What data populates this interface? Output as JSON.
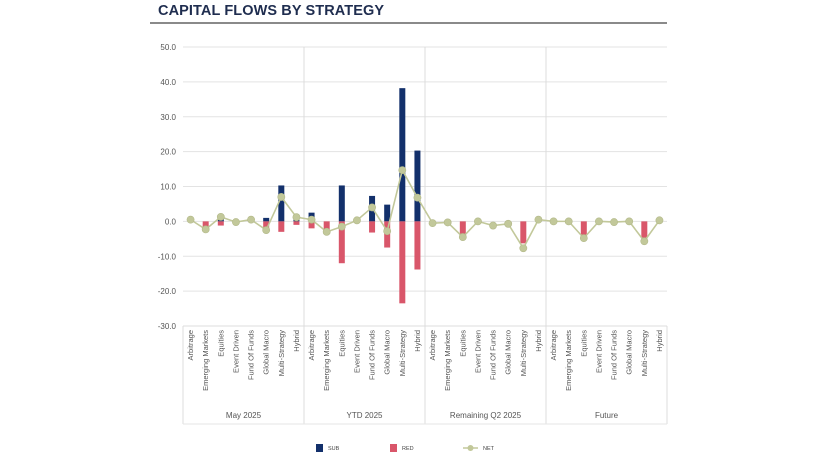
{
  "chart_data": {
    "type": "bar",
    "title": "CAPITAL FLOWS BY STRATEGY",
    "xlabel": "",
    "ylabel": "",
    "ylim": [
      -30,
      50
    ],
    "yticks": [
      50,
      40,
      30,
      20,
      10,
      0,
      -10,
      -20,
      -30
    ],
    "ytick_labels": [
      "50.0",
      "40.0",
      "30.0",
      "20.0",
      "10.0",
      "0.0",
      "-10.0",
      "-20.0",
      "-30.0"
    ],
    "grid": true,
    "legend_position": "bottom",
    "groups": [
      "May 2025",
      "YTD 2025",
      "Remaining Q2 2025",
      "Future"
    ],
    "categories": [
      "Arbitrage",
      "Emerging Markets",
      "Equities",
      "Event Driven",
      "Fund Of Funds",
      "Global Macro",
      "Multi-Strategy",
      "Hybrid"
    ],
    "series": [
      {
        "name": "SUB",
        "kind": "stacked-bar",
        "color": "#13306b",
        "values": [
          [
            0.3,
            0,
            1.8,
            0,
            0.5,
            1.0,
            10.3,
            1.0
          ],
          [
            2.5,
            0,
            10.3,
            0.3,
            7.3,
            4.8,
            38.2,
            20.3
          ],
          [
            0,
            0,
            0,
            0,
            0,
            0,
            0,
            0
          ],
          [
            0,
            0,
            0,
            0,
            0,
            0,
            0,
            0
          ]
        ]
      },
      {
        "name": "RED",
        "kind": "stacked-bar",
        "color": "#d9566a",
        "values": [
          [
            0,
            -1.5,
            -1.2,
            0,
            0,
            -2.0,
            -3.0,
            -1.0
          ],
          [
            -2.0,
            -2.5,
            -12.0,
            0,
            -3.2,
            -7.5,
            -23.5,
            -13.8
          ],
          [
            0,
            0,
            -4.7,
            0,
            0,
            0,
            -6.3,
            0
          ],
          [
            0,
            0,
            -4.5,
            0,
            0,
            0,
            -5.0,
            0
          ]
        ]
      },
      {
        "name": "NET",
        "kind": "line",
        "color": "#c2c89a",
        "values": [
          [
            0.5,
            -2.3,
            1.3,
            -0.2,
            0.5,
            -2.5,
            7.0,
            1.2
          ],
          [
            0.5,
            -3.0,
            -1.5,
            0.3,
            4.0,
            -2.8,
            14.7,
            6.8
          ],
          [
            -0.5,
            -0.3,
            -4.5,
            0,
            -1.2,
            -0.7,
            -7.7,
            0.5
          ],
          [
            0,
            0,
            -4.8,
            0,
            -0.2,
            0,
            -5.7,
            0.3
          ]
        ]
      }
    ]
  },
  "legend": {
    "items": [
      {
        "label": "SUB",
        "color": "#13306b",
        "icon": "square-swatch-icon"
      },
      {
        "label": "RED",
        "color": "#d9566a",
        "icon": "square-swatch-icon"
      },
      {
        "label": "NET",
        "color": "#c2c89a",
        "icon": "line-marker-icon"
      }
    ]
  }
}
